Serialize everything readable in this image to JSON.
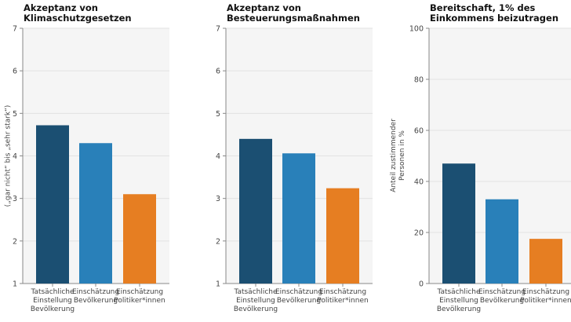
{
  "colors": {
    "actual": "#1b4f72",
    "estimate_population": "#2980b9",
    "estimate_politicians": "#e67e22",
    "plot_background": "#f5f5f5",
    "grid": "#e2e2e2",
    "axis": "#888888"
  },
  "chart_data": [
    {
      "type": "bar",
      "title": "Akzeptanz von\nKlimaschutzgesetzen",
      "ylabel": "(„gar nicht“ bis „sehr stark“)",
      "xlabel": "",
      "categories": [
        "Tatsächliche\nEinstellung\nBevölkerung",
        "Einschätzung\nBevölkerung",
        "Einschätzung\nPolitiker*innen"
      ],
      "values": [
        4.72,
        4.3,
        3.1
      ],
      "ylim": [
        1,
        7
      ],
      "yticks": [
        1,
        2,
        3,
        4,
        5,
        6,
        7
      ],
      "grid": true
    },
    {
      "type": "bar",
      "title": "Akzeptanz von\nBesteuerungsmaßnahmen",
      "ylabel": "",
      "xlabel": "",
      "categories": [
        "Tatsächliche\nEinstellung\nBevölkerung",
        "Einschätzung\nBevölkerung",
        "Einschätzung\nPolitiker*innen"
      ],
      "values": [
        4.4,
        4.06,
        3.24
      ],
      "ylim": [
        1,
        7
      ],
      "yticks": [
        1,
        2,
        3,
        4,
        5,
        6,
        7
      ],
      "grid": true
    },
    {
      "type": "bar",
      "title": "Bereitschaft, 1% des\nEinkommens beizutragen",
      "ylabel": "Anteil zustimmender\nPersonen in %",
      "xlabel": "",
      "categories": [
        "Tatsächliche\nEinstellung\nBevölkerung",
        "Einschätzung\nBevölkerung",
        "Einschätzung\nPolitiker*innen"
      ],
      "values": [
        47,
        33,
        17.5
      ],
      "ylim": [
        0,
        100
      ],
      "yticks": [
        0,
        20,
        40,
        60,
        80,
        100
      ],
      "grid": true
    }
  ]
}
